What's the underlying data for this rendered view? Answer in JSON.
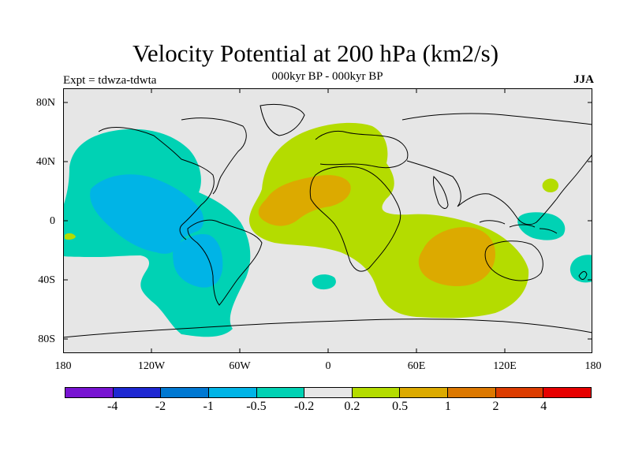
{
  "title": "Velocity Potential at 200 hPa (km2/s)",
  "subtitle": "000kyr BP - 000kyr BP",
  "left_label": "Expt = tdwza-tdwta",
  "right_label": "JJA",
  "map": {
    "lat_labels": [
      "80N",
      "40N",
      "0",
      "40S",
      "80S"
    ],
    "lon_labels": [
      "180",
      "120W",
      "60W",
      "0",
      "60E",
      "120E",
      "180"
    ],
    "background_color": "#e6e6e6",
    "contour_colors": {
      "negative_mid": "#00d2b4",
      "negative_strong": "#00b4e6",
      "positive_mid": "#b4dc00",
      "positive_strong": "#dcaa00"
    }
  },
  "colorbar": {
    "colors": [
      "#7814d2",
      "#1e28d2",
      "#0078d2",
      "#00b4e6",
      "#00d2b4",
      "#e6e6e6",
      "#b4dc00",
      "#dcaa00",
      "#dc7800",
      "#dc3c00",
      "#e60000"
    ],
    "labels": [
      "-4",
      "-2",
      "-1",
      "-0.5",
      "-0.2",
      "0.2",
      "0.5",
      "1",
      "2",
      "4"
    ]
  }
}
